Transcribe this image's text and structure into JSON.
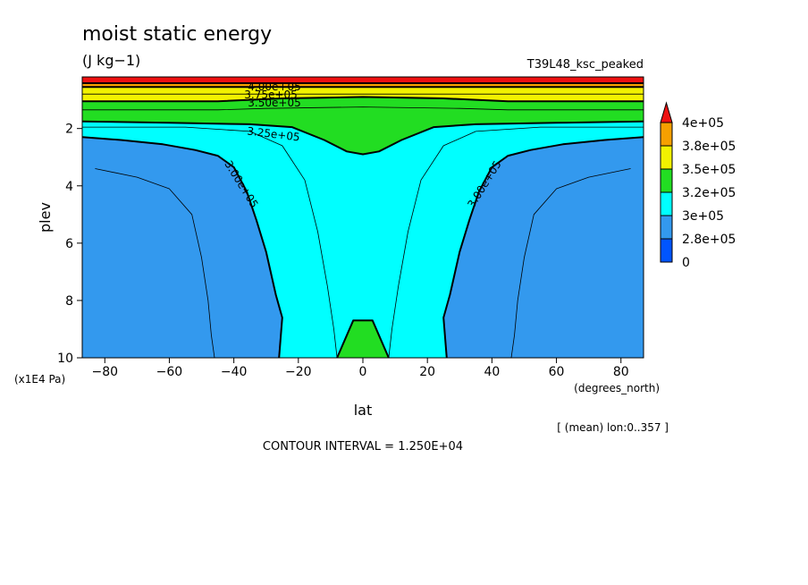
{
  "chart_data": {
    "type": "contour",
    "title": "moist static energy",
    "units": "(J kg−1)",
    "run_label": "T39L48_ksc_peaked",
    "xlabel": "lat",
    "x_units": "(degrees_north)",
    "ylabel": "plev",
    "y_units": "(x1E4 Pa)",
    "xlim": [
      -87,
      87
    ],
    "ylim": [
      10,
      0.2
    ],
    "x_ticks": [
      -80,
      -60,
      -40,
      -20,
      0,
      20,
      40,
      60,
      80
    ],
    "x_tick_labels": [
      "−80",
      "−60",
      "−40",
      "−20",
      "0",
      "20",
      "40",
      "60",
      "80"
    ],
    "y_ticks": [
      2,
      4,
      6,
      8,
      10
    ],
    "y_tick_labels": [
      "2",
      "4",
      "6",
      "8",
      "10"
    ],
    "subset_note": "[ (mean) lon:0..357 ]",
    "contour_interval_text": "CONTOUR INTERVAL = 1.250E+04",
    "contour_labels": [
      "4.00e+05",
      "3.75e+05",
      "3.50e+05",
      "3.25e+05",
      "3.00e+05",
      "3.00e+05"
    ],
    "colorbar": {
      "labels": [
        "4e+05",
        "3.8e+05",
        "3.5e+05",
        "3.2e+05",
        "3e+05",
        "2.8e+05",
        "0"
      ],
      "colors": [
        "#ee1111",
        "#f5a000",
        "#f2f200",
        "#22dd22",
        "#00ffff",
        "#3399ee",
        "#0055ff"
      ]
    },
    "regions": [
      {
        "level": "2.8e+05-3e+05",
        "color": "#3399ee",
        "points": [
          [
            -87,
            10
          ],
          [
            -87,
            2.3
          ],
          [
            -75,
            2.4
          ],
          [
            -62,
            2.55
          ],
          [
            -52,
            2.75
          ],
          [
            -45,
            2.95
          ],
          [
            -40,
            3.35
          ],
          [
            -36,
            4.2
          ],
          [
            -33,
            5.2
          ],
          [
            -30,
            6.3
          ],
          [
            -27,
            7.8
          ],
          [
            -25,
            8.6
          ],
          [
            -26,
            10
          ]
        ]
      },
      {
        "level": "2.8e+05-3e+05",
        "color": "#3399ee",
        "points": [
          [
            87,
            10
          ],
          [
            87,
            2.3
          ],
          [
            75,
            2.4
          ],
          [
            62,
            2.55
          ],
          [
            52,
            2.75
          ],
          [
            45,
            2.95
          ],
          [
            40,
            3.35
          ],
          [
            36,
            4.2
          ],
          [
            33,
            5.2
          ],
          [
            30,
            6.3
          ],
          [
            27,
            7.8
          ],
          [
            25,
            8.6
          ],
          [
            26,
            10
          ]
        ]
      },
      {
        "level": "3.2e+05-3.5e+05",
        "color": "#22dd22",
        "points": [
          [
            -87,
            1.75
          ],
          [
            -60,
            1.8
          ],
          [
            -35,
            1.85
          ],
          [
            -22,
            1.95
          ],
          [
            -12,
            2.4
          ],
          [
            -5,
            2.8
          ],
          [
            0,
            2.9
          ],
          [
            5,
            2.8
          ],
          [
            12,
            2.4
          ],
          [
            22,
            1.95
          ],
          [
            35,
            1.85
          ],
          [
            60,
            1.8
          ],
          [
            87,
            1.75
          ],
          [
            87,
            0.2
          ],
          [
            -87,
            0.2
          ]
        ]
      },
      {
        "level": "3.2e+05-3.5e+05",
        "color": "#22dd22",
        "points": [
          [
            -8,
            10
          ],
          [
            -3,
            8.7
          ],
          [
            3,
            8.7
          ],
          [
            8,
            10
          ]
        ]
      },
      {
        "level": "3.5e+05-3.8e+05",
        "color": "#f2f200",
        "points": [
          [
            -87,
            1.05
          ],
          [
            -45,
            1.05
          ],
          [
            -25,
            0.95
          ],
          [
            0,
            0.9
          ],
          [
            25,
            0.95
          ],
          [
            45,
            1.05
          ],
          [
            87,
            1.05
          ],
          [
            87,
            0.2
          ],
          [
            -87,
            0.2
          ]
        ]
      },
      {
        "level": "3.8e+05-4e+05",
        "color": "#f5a000",
        "points": [
          [
            -87,
            0.55
          ],
          [
            87,
            0.55
          ],
          [
            87,
            0.2
          ],
          [
            -87,
            0.2
          ]
        ]
      },
      {
        "level": ">4e+05",
        "color": "#ee1111",
        "points": [
          [
            -87,
            0.42
          ],
          [
            87,
            0.42
          ],
          [
            87,
            0.2
          ],
          [
            -87,
            0.2
          ]
        ]
      }
    ],
    "contour_lines": [
      {
        "label": "2.875e+05",
        "thick": false,
        "points": [
          [
            -83,
            3.4
          ],
          [
            -70,
            3.7
          ],
          [
            -60,
            4.1
          ],
          [
            -53,
            5.0
          ],
          [
            -50,
            6.5
          ],
          [
            -48,
            8.0
          ],
          [
            -47,
            9.2
          ],
          [
            -46,
            10
          ]
        ]
      },
      {
        "label": "2.875e+05",
        "thick": false,
        "points": [
          [
            83,
            3.4
          ],
          [
            70,
            3.7
          ],
          [
            60,
            4.1
          ],
          [
            53,
            5.0
          ],
          [
            50,
            6.5
          ],
          [
            48,
            8.0
          ],
          [
            47,
            9.2
          ],
          [
            46,
            10
          ]
        ]
      },
      {
        "label": "3.00e+05",
        "thick": true,
        "points": [
          [
            -87,
            2.3
          ],
          [
            -75,
            2.4
          ],
          [
            -62,
            2.55
          ],
          [
            -52,
            2.75
          ],
          [
            -45,
            2.95
          ],
          [
            -40,
            3.35
          ],
          [
            -36,
            4.2
          ],
          [
            -33,
            5.2
          ],
          [
            -30,
            6.3
          ],
          [
            -27,
            7.8
          ],
          [
            -25,
            8.6
          ],
          [
            -26,
            10
          ]
        ]
      },
      {
        "label": "3.00e+05",
        "thick": true,
        "points": [
          [
            87,
            2.3
          ],
          [
            75,
            2.4
          ],
          [
            62,
            2.55
          ],
          [
            52,
            2.75
          ],
          [
            45,
            2.95
          ],
          [
            40,
            3.35
          ],
          [
            36,
            4.2
          ],
          [
            33,
            5.2
          ],
          [
            30,
            6.3
          ],
          [
            27,
            7.8
          ],
          [
            25,
            8.6
          ],
          [
            26,
            10
          ]
        ]
      },
      {
        "label": "3.125e+05",
        "thick": false,
        "points": [
          [
            -87,
            1.95
          ],
          [
            -55,
            1.95
          ],
          [
            -35,
            2.1
          ],
          [
            -25,
            2.6
          ],
          [
            -18,
            3.8
          ],
          [
            -14,
            5.6
          ],
          [
            -11,
            7.5
          ],
          [
            -9,
            9.0
          ],
          [
            -8,
            10
          ]
        ]
      },
      {
        "label": "3.125e+05",
        "thick": false,
        "points": [
          [
            87,
            1.95
          ],
          [
            55,
            1.95
          ],
          [
            35,
            2.1
          ],
          [
            25,
            2.6
          ],
          [
            18,
            3.8
          ],
          [
            14,
            5.6
          ],
          [
            11,
            7.5
          ],
          [
            9,
            9.0
          ],
          [
            8,
            10
          ]
        ]
      },
      {
        "label": "3.25e+05",
        "thick": true,
        "points": [
          [
            -87,
            1.75
          ],
          [
            -60,
            1.8
          ],
          [
            -35,
            1.85
          ],
          [
            -22,
            1.95
          ],
          [
            -12,
            2.4
          ],
          [
            -5,
            2.8
          ],
          [
            0,
            2.9
          ],
          [
            5,
            2.8
          ],
          [
            12,
            2.4
          ],
          [
            22,
            1.95
          ],
          [
            35,
            1.85
          ],
          [
            60,
            1.8
          ],
          [
            87,
            1.75
          ]
        ]
      },
      {
        "label": "3.25e+05",
        "thick": true,
        "points": [
          [
            -8,
            10
          ],
          [
            -3,
            8.7
          ],
          [
            3,
            8.7
          ],
          [
            8,
            10
          ]
        ]
      },
      {
        "label": "3.375e+05",
        "thick": false,
        "points": [
          [
            -87,
            1.35
          ],
          [
            -45,
            1.35
          ],
          [
            -30,
            1.3
          ],
          [
            0,
            1.25
          ],
          [
            30,
            1.3
          ],
          [
            45,
            1.35
          ],
          [
            87,
            1.35
          ]
        ]
      },
      {
        "label": "3.50e+05",
        "thick": true,
        "points": [
          [
            -87,
            1.05
          ],
          [
            -45,
            1.05
          ],
          [
            -25,
            0.95
          ],
          [
            0,
            0.9
          ],
          [
            25,
            0.95
          ],
          [
            45,
            1.05
          ],
          [
            87,
            1.05
          ]
        ]
      },
      {
        "label": "3.625e+05",
        "thick": false,
        "points": [
          [
            -87,
            0.8
          ],
          [
            87,
            0.8
          ]
        ]
      },
      {
        "label": "3.75e+05",
        "thick": true,
        "points": [
          [
            -87,
            0.55
          ],
          [
            87,
            0.55
          ]
        ]
      },
      {
        "label": "4.00e+05",
        "thick": true,
        "points": [
          [
            -87,
            0.42
          ],
          [
            87,
            0.42
          ]
        ]
      }
    ]
  }
}
